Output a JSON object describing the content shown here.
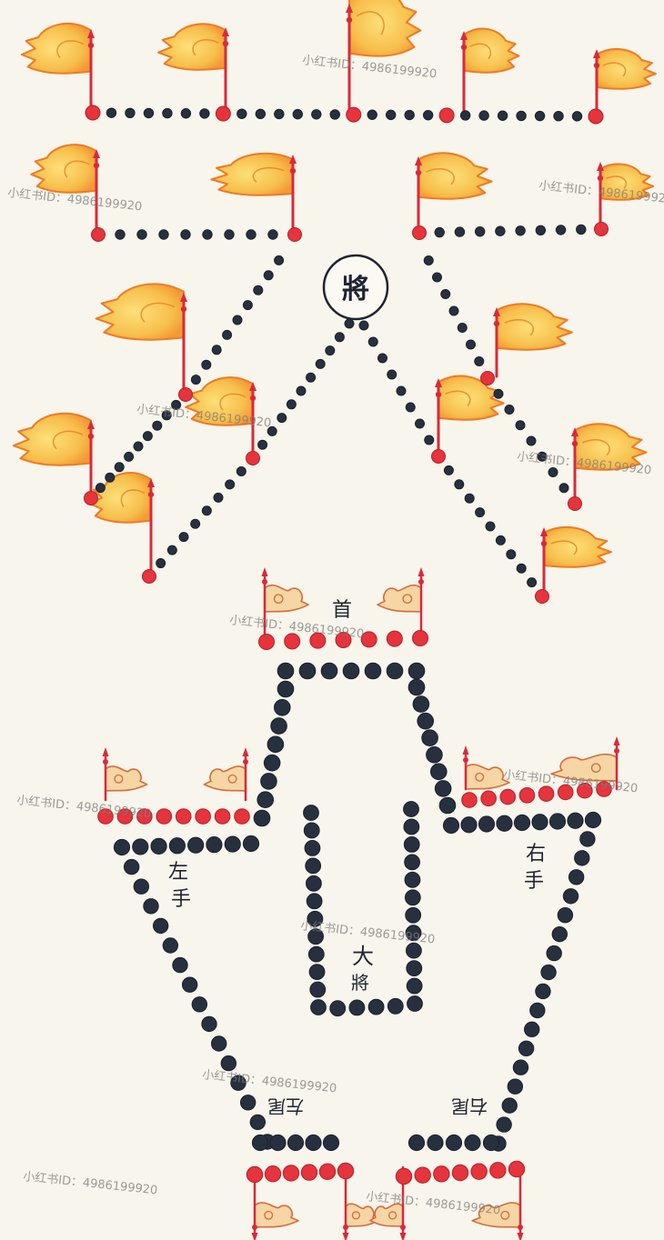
{
  "labels": {
    "general": "將",
    "head": "首",
    "left_hand_1": "左",
    "left_hand_2": "手",
    "right_hand_1": "右",
    "right_hand_2": "手",
    "grand_general_1": "大",
    "grand_general_2": "將",
    "left_tail": "左尾",
    "right_tail": "右尾"
  },
  "watermark": "小红书ID：4986199920",
  "colors": {
    "dot": "#27303f",
    "dot_red": "#e5343c",
    "pole": "#d82a3a",
    "flag_fill": "#f7bf4c",
    "flag_edge": "#ee7a24",
    "cloud_fill": "#f6d6a4",
    "cloud_edge": "#d86a3a",
    "background": "#f8f5ec"
  }
}
